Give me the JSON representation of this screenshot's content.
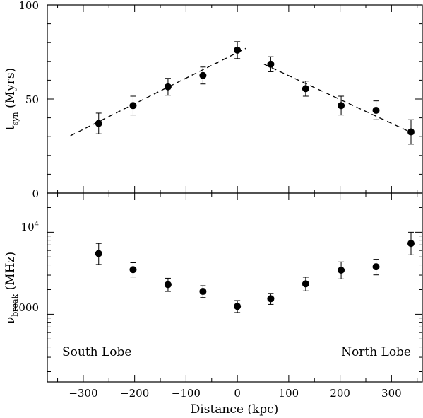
{
  "chart_data": [
    {
      "type": "scatter",
      "panel": "top",
      "ylabel": {
        "main": "t",
        "sub": "syn",
        "unit": " (Myrs)"
      },
      "ylim": [
        0,
        100
      ],
      "xlim": [
        -370,
        360
      ],
      "yticks": [
        0,
        50,
        100
      ],
      "grid": false,
      "series": [
        {
          "x": [
            -270,
            -203,
            -135,
            -67,
            0,
            65,
            133,
            202,
            270,
            338
          ],
          "y": [
            37,
            46.5,
            56.5,
            62.5,
            76,
            68.5,
            55.5,
            46.5,
            44,
            32.5
          ],
          "err_lo": [
            5.5,
            5,
            4.5,
            4.5,
            4.5,
            4,
            4,
            5,
            5,
            6.5
          ],
          "err_hi": [
            5.5,
            5,
            4.5,
            4.5,
            4.5,
            4,
            4,
            5,
            5,
            6.5
          ]
        }
      ],
      "fit_lines": [
        {
          "x": [
            -325,
            17
          ],
          "y": [
            30.5,
            77
          ]
        },
        {
          "x": [
            52,
            340
          ],
          "y": [
            68.5,
            32
          ]
        }
      ]
    },
    {
      "type": "scatter",
      "panel": "bottom",
      "xlabel": "Distance (kpc)",
      "ylabel": {
        "main": "ν",
        "sub": "break",
        "unit": " (MHz)"
      },
      "yscale": "log",
      "ylim": [
        150,
        30000
      ],
      "xlim": [
        -370,
        360
      ],
      "xticks": [
        -300,
        -200,
        -100,
        0,
        100,
        200,
        300
      ],
      "yticks": [
        {
          "value": 1000,
          "label": "1000"
        },
        {
          "value": 10000,
          "base": "10",
          "exp": "4"
        }
      ],
      "grid": false,
      "series": [
        {
          "x": [
            -270,
            -203,
            -135,
            -67,
            0,
            65,
            133,
            202,
            270,
            338
          ],
          "y": [
            5500,
            3500,
            2300,
            1900,
            1250,
            1550,
            2350,
            3450,
            3800,
            7300
          ],
          "err_lo": [
            1450,
            650,
            400,
            300,
            200,
            230,
            420,
            750,
            780,
            2000
          ],
          "err_hi": [
            1800,
            750,
            450,
            330,
            220,
            250,
            480,
            900,
            880,
            2700
          ]
        }
      ],
      "annotations": [
        "South Lobe",
        "North Lobe"
      ]
    }
  ]
}
